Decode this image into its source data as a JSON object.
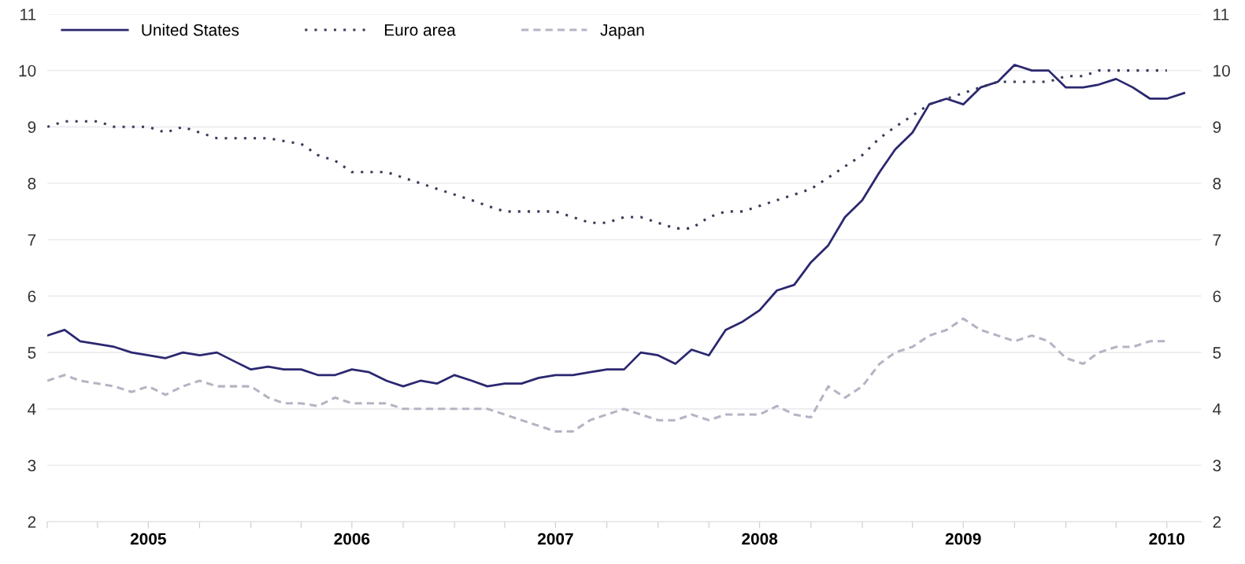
{
  "chart_data": {
    "type": "line",
    "x": [
      "2005-01",
      "2005-02",
      "2005-03",
      "2005-04",
      "2005-05",
      "2005-06",
      "2005-07",
      "2005-08",
      "2005-09",
      "2005-10",
      "2005-11",
      "2005-12",
      "2006-01",
      "2006-02",
      "2006-03",
      "2006-04",
      "2006-05",
      "2006-06",
      "2006-07",
      "2006-08",
      "2006-09",
      "2006-10",
      "2006-11",
      "2006-12",
      "2007-01",
      "2007-02",
      "2007-03",
      "2007-04",
      "2007-05",
      "2007-06",
      "2007-07",
      "2007-08",
      "2007-09",
      "2007-10",
      "2007-11",
      "2007-12",
      "2008-01",
      "2008-02",
      "2008-03",
      "2008-04",
      "2008-05",
      "2008-06",
      "2008-07",
      "2008-08",
      "2008-09",
      "2008-10",
      "2008-11",
      "2008-12",
      "2009-01",
      "2009-02",
      "2009-03",
      "2009-04",
      "2009-05",
      "2009-06",
      "2009-07",
      "2009-08",
      "2009-09",
      "2009-10",
      "2009-11",
      "2009-12",
      "2010-01",
      "2010-02",
      "2010-03",
      "2010-04",
      "2010-05",
      "2010-06",
      "2010-07",
      "2010-08"
    ],
    "series": [
      {
        "name": "United States",
        "color": "#2b2870",
        "line_style": "solid",
        "values": [
          5.3,
          5.4,
          5.2,
          5.15,
          5.1,
          5.0,
          4.95,
          4.9,
          5.0,
          4.95,
          5.0,
          4.85,
          4.7,
          4.75,
          4.7,
          4.7,
          4.6,
          4.6,
          4.7,
          4.65,
          4.5,
          4.4,
          4.5,
          4.45,
          4.6,
          4.5,
          4.4,
          4.45,
          4.45,
          4.55,
          4.6,
          4.6,
          4.65,
          4.7,
          4.7,
          5.0,
          4.95,
          4.8,
          5.05,
          4.95,
          5.4,
          5.55,
          5.75,
          6.1,
          6.2,
          6.6,
          6.9,
          7.4,
          7.7,
          8.2,
          8.6,
          8.9,
          9.4,
          9.5,
          9.4,
          9.7,
          9.8,
          10.1,
          10.0,
          10.0,
          9.7,
          9.7,
          9.75,
          9.85,
          9.7,
          9.5,
          9.5,
          9.6
        ]
      },
      {
        "name": "Euro area",
        "color": "#3a3a58",
        "line_style": "dotted",
        "values": [
          9.0,
          9.1,
          9.1,
          9.1,
          9.0,
          9.0,
          9.0,
          8.9,
          9.0,
          8.9,
          8.8,
          8.8,
          8.8,
          8.8,
          8.75,
          8.7,
          8.5,
          8.4,
          8.2,
          8.2,
          8.2,
          8.1,
          8.0,
          7.9,
          7.8,
          7.7,
          7.6,
          7.5,
          7.5,
          7.5,
          7.5,
          7.4,
          7.3,
          7.3,
          7.4,
          7.4,
          7.3,
          7.2,
          7.2,
          7.4,
          7.5,
          7.5,
          7.6,
          7.7,
          7.8,
          7.9,
          8.1,
          8.3,
          8.5,
          8.8,
          9.0,
          9.2,
          9.4,
          9.5,
          9.6,
          9.7,
          9.8,
          9.8,
          9.8,
          9.8,
          9.9,
          9.9,
          10.0,
          10.0,
          10.0,
          10.0,
          10.0,
          null
        ]
      },
      {
        "name": "Japan",
        "color": "#b4b4c4",
        "line_style": "dashed",
        "values": [
          4.5,
          4.6,
          4.5,
          4.45,
          4.4,
          4.3,
          4.4,
          4.25,
          4.4,
          4.5,
          4.4,
          4.4,
          4.4,
          4.2,
          4.1,
          4.1,
          4.05,
          4.2,
          4.1,
          4.1,
          4.1,
          4.0,
          4.0,
          4.0,
          4.0,
          4.0,
          4.0,
          3.9,
          3.8,
          3.7,
          3.6,
          3.6,
          3.8,
          3.9,
          4.0,
          3.9,
          3.8,
          3.8,
          3.9,
          3.8,
          3.9,
          3.9,
          3.9,
          4.05,
          3.9,
          3.85,
          4.4,
          4.2,
          4.4,
          4.8,
          5.0,
          5.1,
          5.3,
          5.4,
          5.6,
          5.4,
          5.3,
          5.2,
          5.3,
          5.2,
          4.9,
          4.8,
          5.0,
          5.1,
          5.1,
          5.2,
          5.2,
          null
        ]
      }
    ],
    "xlim": [
      "2005-01-01",
      "2010-09-01"
    ],
    "xticks": [
      {
        "value": "2005-01-01",
        "label": null
      },
      {
        "value": "2005-04-01",
        "label": null
      },
      {
        "value": "2005-07-01",
        "label": "2005"
      },
      {
        "value": "2005-10-01",
        "label": null
      },
      {
        "value": "2006-01-01",
        "label": null
      },
      {
        "value": "2006-04-01",
        "label": null
      },
      {
        "value": "2006-07-01",
        "label": "2006"
      },
      {
        "value": "2006-10-01",
        "label": null
      },
      {
        "value": "2007-01-01",
        "label": null
      },
      {
        "value": "2007-04-01",
        "label": null
      },
      {
        "value": "2007-07-01",
        "label": "2007"
      },
      {
        "value": "2007-10-01",
        "label": null
      },
      {
        "value": "2008-01-01",
        "label": null
      },
      {
        "value": "2008-04-01",
        "label": null
      },
      {
        "value": "2008-07-01",
        "label": "2008"
      },
      {
        "value": "2008-10-01",
        "label": null
      },
      {
        "value": "2009-01-01",
        "label": null
      },
      {
        "value": "2009-04-01",
        "label": null
      },
      {
        "value": "2009-07-01",
        "label": "2009"
      },
      {
        "value": "2009-10-01",
        "label": null
      },
      {
        "value": "2010-01-01",
        "label": null
      },
      {
        "value": "2010-04-01",
        "label": null
      },
      {
        "value": "2010-07-01",
        "label": "2010"
      }
    ],
    "ylim": [
      2,
      11
    ],
    "yticks": [
      2,
      3,
      4,
      5,
      6,
      7,
      8,
      9,
      10,
      11
    ],
    "y2lim": [
      2,
      11
    ],
    "y2ticks": [
      2,
      3,
      4,
      5,
      6,
      7,
      8,
      9,
      10,
      11
    ],
    "grid": "y",
    "legend": "top left"
  }
}
